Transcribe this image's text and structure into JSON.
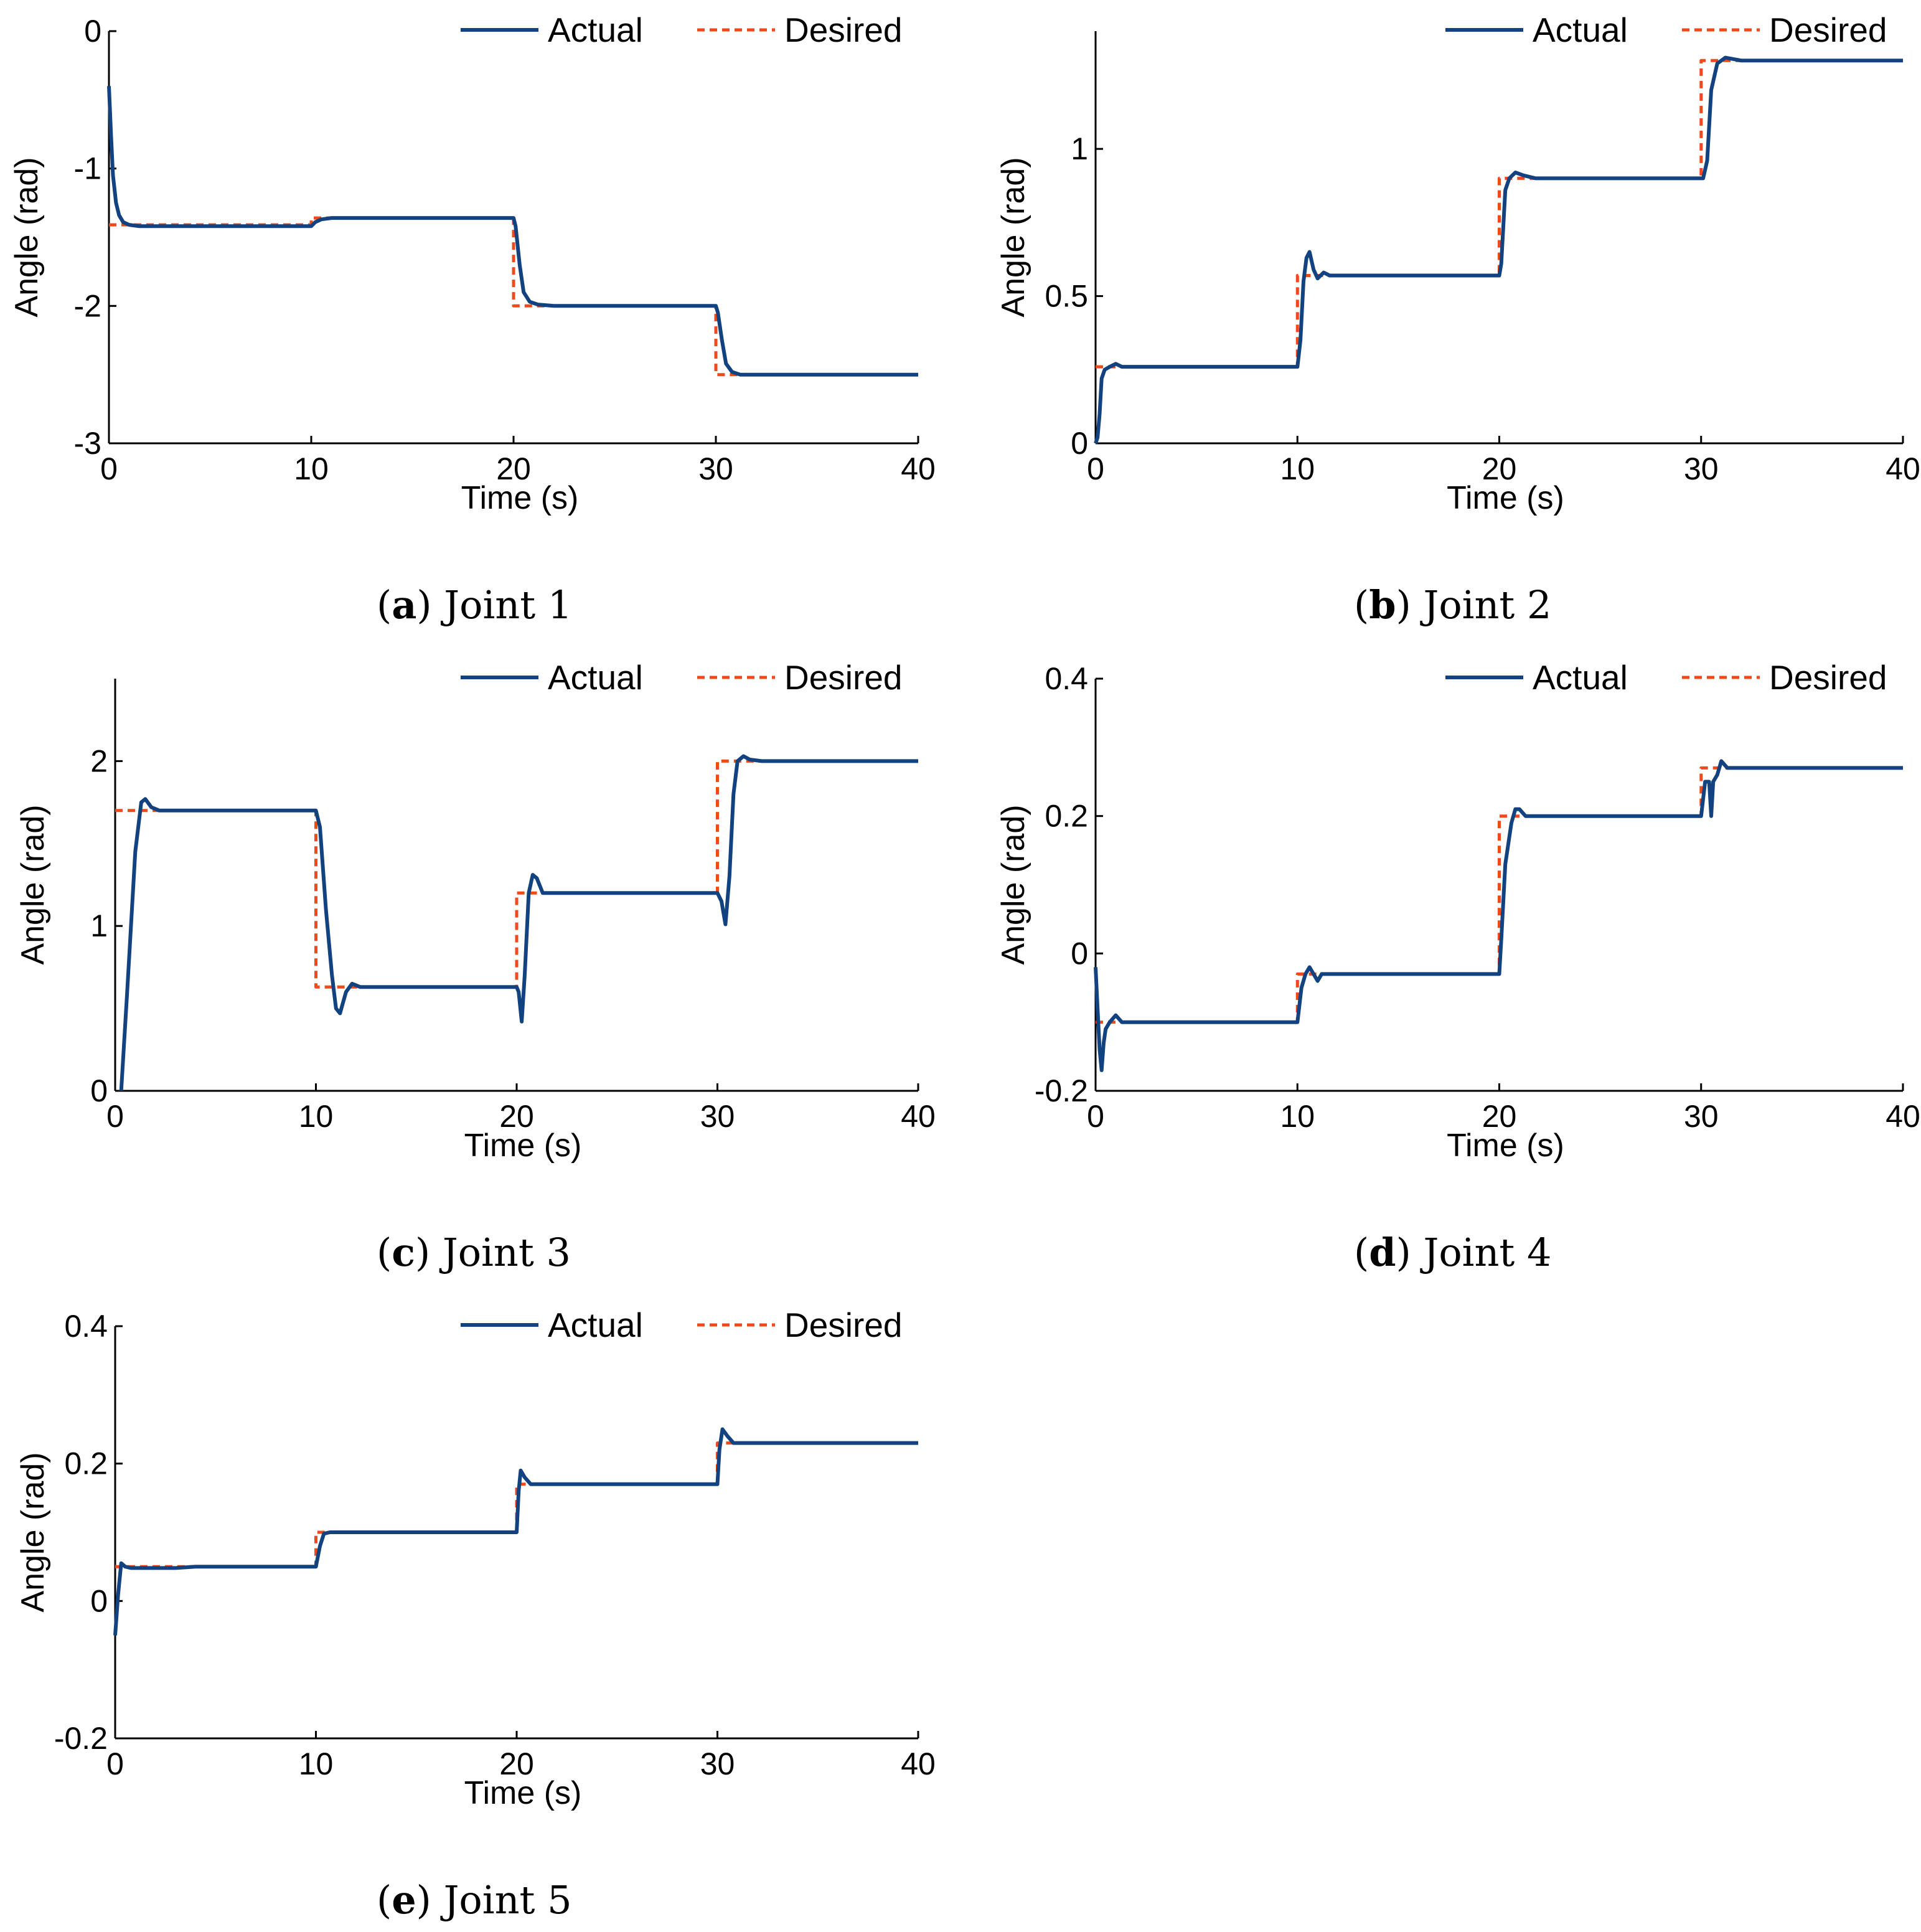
{
  "colors": {
    "actual": "#12427f",
    "desired": "#f0491b",
    "axis": "#000000"
  },
  "legend": {
    "actual_label": "Actual",
    "desired_label": "Desired"
  },
  "chart_data": [
    {
      "type": "line",
      "title": "Joint 1",
      "caption_letter": "a",
      "caption_text": "Joint 1",
      "xlabel": "Time (s)",
      "ylabel": "Angle (rad)",
      "xlim": [
        0,
        40
      ],
      "ylim": [
        -3,
        0
      ],
      "xticks": [
        0,
        10,
        20,
        30,
        40
      ],
      "yticks": [
        -3,
        -2,
        -1,
        0
      ],
      "ytick_labels": [
        "-3",
        "-2",
        "-1",
        "0"
      ],
      "legend_position": "top-right",
      "series": [
        {
          "name": "Actual",
          "style": "solid",
          "x": [
            0,
            0.1,
            0.2,
            0.35,
            0.5,
            0.7,
            1.0,
            1.5,
            2,
            10,
            10.2,
            10.5,
            11,
            20,
            20.1,
            20.3,
            20.5,
            20.8,
            21.2,
            22,
            30,
            30.1,
            30.3,
            30.5,
            30.8,
            31.2,
            32,
            40
          ],
          "y": [
            -0.4,
            -0.75,
            -1.05,
            -1.25,
            -1.34,
            -1.39,
            -1.41,
            -1.42,
            -1.42,
            -1.42,
            -1.39,
            -1.37,
            -1.36,
            -1.36,
            -1.42,
            -1.7,
            -1.9,
            -1.97,
            -1.99,
            -2.0,
            -2.0,
            -2.05,
            -2.25,
            -2.42,
            -2.48,
            -2.5,
            -2.5,
            -2.5
          ]
        },
        {
          "name": "Desired",
          "style": "dashed",
          "x": [
            0,
            10,
            10,
            20,
            20,
            30,
            30,
            40
          ],
          "y": [
            -1.41,
            -1.41,
            -1.36,
            -1.36,
            -2.0,
            -2.0,
            -2.5,
            -2.5
          ]
        }
      ]
    },
    {
      "type": "line",
      "title": "Joint 2",
      "caption_letter": "b",
      "caption_text": "Joint 2",
      "xlabel": "Time (s)",
      "ylabel": "Angle (rad)",
      "xlim": [
        0,
        40
      ],
      "ylim": [
        0,
        1.4
      ],
      "xticks": [
        0,
        10,
        20,
        30,
        40
      ],
      "yticks": [
        0,
        0.5,
        1
      ],
      "ytick_labels": [
        "0",
        "0.5",
        "1"
      ],
      "legend_position": "top-right",
      "series": [
        {
          "name": "Actual",
          "style": "solid",
          "x": [
            0,
            0.1,
            0.2,
            0.3,
            0.45,
            0.7,
            1.0,
            1.3,
            1.8,
            10,
            10.15,
            10.3,
            10.45,
            10.6,
            10.8,
            11.0,
            11.3,
            11.6,
            12,
            20,
            20.1,
            20.3,
            20.5,
            20.8,
            21.2,
            21.8,
            30,
            30.1,
            30.3,
            30.5,
            30.8,
            31.2,
            32,
            40
          ],
          "y": [
            0,
            0.02,
            0.1,
            0.22,
            0.25,
            0.26,
            0.27,
            0.26,
            0.26,
            0.26,
            0.35,
            0.55,
            0.63,
            0.65,
            0.59,
            0.56,
            0.58,
            0.57,
            0.57,
            0.57,
            0.61,
            0.86,
            0.9,
            0.92,
            0.91,
            0.9,
            0.9,
            0.9,
            0.96,
            1.2,
            1.29,
            1.31,
            1.3,
            1.3
          ]
        },
        {
          "name": "Desired",
          "style": "dashed",
          "x": [
            0,
            10,
            10,
            20,
            20,
            30,
            30,
            40
          ],
          "y": [
            0.26,
            0.26,
            0.57,
            0.57,
            0.9,
            0.9,
            1.3,
            1.3
          ]
        }
      ]
    },
    {
      "type": "line",
      "title": "Joint 3",
      "caption_letter": "c",
      "caption_text": "Joint 3",
      "xlabel": "Time (s)",
      "ylabel": "Angle (rad)",
      "xlim": [
        0,
        40
      ],
      "ylim": [
        0,
        2.5
      ],
      "xticks": [
        0,
        10,
        20,
        30,
        40
      ],
      "yticks": [
        0,
        1,
        2
      ],
      "ytick_labels": [
        "0",
        "1",
        "2"
      ],
      "legend_position": "top-right",
      "series": [
        {
          "name": "Actual",
          "style": "solid",
          "x": [
            0.3,
            0.6,
            1.0,
            1.3,
            1.5,
            1.8,
            2.2,
            3,
            10,
            10.2,
            10.5,
            10.8,
            11.0,
            11.2,
            11.5,
            11.8,
            12.2,
            13,
            20,
            20.1,
            20.25,
            20.4,
            20.6,
            20.8,
            21.0,
            21.3,
            21.7,
            22.5,
            30,
            30.2,
            30.4,
            30.6,
            30.8,
            31.0,
            31.3,
            31.6,
            32.2,
            40
          ],
          "y": [
            0,
            0.6,
            1.45,
            1.75,
            1.77,
            1.72,
            1.7,
            1.7,
            1.7,
            1.6,
            1.1,
            0.7,
            0.5,
            0.47,
            0.6,
            0.65,
            0.63,
            0.63,
            0.63,
            0.6,
            0.42,
            0.7,
            1.2,
            1.31,
            1.29,
            1.2,
            1.2,
            1.2,
            1.2,
            1.15,
            1.01,
            1.3,
            1.8,
            2.0,
            2.03,
            2.01,
            2.0,
            2.0
          ]
        },
        {
          "name": "Desired",
          "style": "dashed",
          "x": [
            0,
            10,
            10,
            20,
            20,
            30,
            30,
            40
          ],
          "y": [
            1.7,
            1.7,
            0.63,
            0.63,
            1.2,
            1.2,
            2.0,
            2.0
          ]
        }
      ]
    },
    {
      "type": "line",
      "title": "Joint 4",
      "caption_letter": "d",
      "caption_text": "Joint 4",
      "xlabel": "Time (s)",
      "ylabel": "Angle (rad)",
      "xlim": [
        0,
        40
      ],
      "ylim": [
        -0.2,
        0.4
      ],
      "xticks": [
        0,
        10,
        20,
        30,
        40
      ],
      "yticks": [
        -0.2,
        0,
        0.2,
        0.4
      ],
      "ytick_labels": [
        "-0.2",
        "0",
        "0.2",
        "0.4"
      ],
      "legend_position": "top-right",
      "series": [
        {
          "name": "Actual",
          "style": "solid",
          "x": [
            0,
            0.1,
            0.2,
            0.3,
            0.4,
            0.5,
            0.7,
            1.0,
            1.3,
            1.6,
            2.2,
            10,
            10.2,
            10.4,
            10.6,
            10.8,
            11.0,
            11.2,
            11.5,
            12,
            20,
            20.1,
            20.3,
            20.4,
            20.6,
            20.8,
            21.0,
            21.3,
            22,
            30,
            30.2,
            30.4,
            30.5,
            30.6,
            30.8,
            31.0,
            31.3,
            32,
            40
          ],
          "y": [
            -0.02,
            -0.08,
            -0.14,
            -0.17,
            -0.13,
            -0.11,
            -0.1,
            -0.09,
            -0.1,
            -0.1,
            -0.1,
            -0.1,
            -0.05,
            -0.03,
            -0.02,
            -0.03,
            -0.04,
            -0.03,
            -0.03,
            -0.03,
            -0.03,
            0.02,
            0.13,
            0.15,
            0.19,
            0.21,
            0.21,
            0.2,
            0.2,
            0.2,
            0.25,
            0.25,
            0.2,
            0.25,
            0.26,
            0.28,
            0.27,
            0.27,
            0.27
          ]
        },
        {
          "name": "Desired",
          "style": "dashed",
          "x": [
            0,
            10,
            10,
            20,
            20,
            30,
            30,
            40
          ],
          "y": [
            -0.1,
            -0.1,
            -0.03,
            -0.03,
            0.2,
            0.2,
            0.27,
            0.27
          ]
        }
      ]
    },
    {
      "type": "line",
      "title": "Joint 5",
      "caption_letter": "e",
      "caption_text": "Joint 5",
      "xlabel": "Time (s)",
      "ylabel": "Angle (rad)",
      "xlim": [
        0,
        40
      ],
      "ylim": [
        -0.2,
        0.4
      ],
      "xticks": [
        0,
        10,
        20,
        30,
        40
      ],
      "yticks": [
        -0.2,
        0,
        0.2,
        0.4
      ],
      "ytick_labels": [
        "-0.2",
        "0",
        "0.2",
        "0.4"
      ],
      "legend_position": "top-right",
      "series": [
        {
          "name": "Actual",
          "style": "solid",
          "x": [
            0,
            0.15,
            0.3,
            0.5,
            0.8,
            1.2,
            2,
            3,
            4,
            10,
            10.2,
            10.4,
            10.7,
            11,
            12,
            13,
            20,
            20.1,
            20.2,
            20.4,
            20.7,
            21,
            22,
            23,
            25,
            30,
            30.1,
            30.25,
            30.5,
            30.8,
            31.2,
            32,
            35,
            40
          ],
          "y": [
            -0.05,
            0.01,
            0.055,
            0.05,
            0.048,
            0.048,
            0.048,
            0.048,
            0.05,
            0.05,
            0.08,
            0.098,
            0.1,
            0.1,
            0.1,
            0.1,
            0.1,
            0.16,
            0.19,
            0.18,
            0.17,
            0.17,
            0.17,
            0.17,
            0.17,
            0.17,
            0.22,
            0.25,
            0.24,
            0.23,
            0.23,
            0.23,
            0.23,
            0.23
          ]
        },
        {
          "name": "Desired",
          "style": "dashed",
          "x": [
            0,
            10,
            10,
            20,
            20,
            30,
            30,
            40
          ],
          "y": [
            0.05,
            0.05,
            0.1,
            0.1,
            0.17,
            0.17,
            0.23,
            0.23
          ]
        }
      ]
    }
  ]
}
